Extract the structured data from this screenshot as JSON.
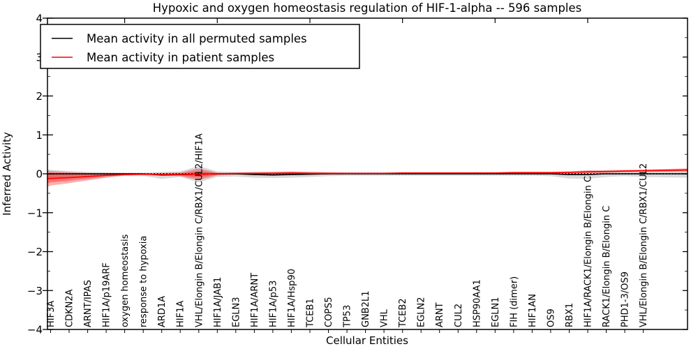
{
  "chart_data": {
    "type": "line",
    "title": "Hypoxic and oxygen homeostasis regulation of HIF-1-alpha -- 596 samples",
    "xlabel": "Cellular Entities",
    "ylabel": "Inferred Activity",
    "ylim": [
      -4,
      4
    ],
    "ytick_labels": [
      "4",
      "3",
      "2",
      "1",
      "0",
      "−1",
      "−2",
      "−3",
      "−4"
    ],
    "ytick_values": [
      4,
      3,
      2,
      1,
      0,
      -1,
      -2,
      -3,
      -4
    ],
    "grid": false,
    "legend_position": "upper-left",
    "categories": [
      "HIF3A",
      "CDKN2A",
      "ARNT/IPAS",
      "HIF1A/p19ARF",
      "oxygen homeostasis",
      "response to hypoxia",
      "ARD1A",
      "HIF1A",
      "VHL/Elongin B/Elongin C/RBX1/CUL2/HIF1A",
      "HIF1A/JAB1",
      "EGLN3",
      "HIF1A/ARNT",
      "HIF1A/p53",
      "HIF1A/Hsp90",
      "TCEB1",
      "COPS5",
      "TP53",
      "GNB2L1",
      "VHL",
      "TCEB2",
      "EGLN2",
      "ARNT",
      "CUL2",
      "HSP90AA1",
      "EGLN1",
      "FIH (dimer)",
      "HIF1AN",
      "OS9",
      "RBX1",
      "HIF1A/RACK1/Elongin B/Elongin C",
      "RACK1/Elongin B/Elongin C",
      "PHD1-3/OS9",
      "VHL/Elongin B/Elongin C/RBX1/CUL2"
    ],
    "series": [
      {
        "name": "Mean activity in all permuted samples",
        "color": "#000000",
        "band_color": "rgba(128,128,128,0.30)",
        "values": [
          0,
          0,
          0,
          0,
          0,
          0,
          -0.03,
          -0.02,
          -0.01,
          0,
          0,
          -0.02,
          -0.03,
          -0.02,
          -0.01,
          0,
          0,
          0,
          0,
          0,
          0,
          0,
          0,
          0,
          0,
          0,
          0,
          0,
          -0.02,
          -0.02,
          0,
          0,
          0
        ],
        "band_upper": [
          0.1,
          0.07,
          0.05,
          0.04,
          0.03,
          0.03,
          0.05,
          0.06,
          0.2,
          0.06,
          0.04,
          0.05,
          0.05,
          0.05,
          0.05,
          0.04,
          0.04,
          0.04,
          0.04,
          0.04,
          0.04,
          0.04,
          0.04,
          0.04,
          0.04,
          0.04,
          0.04,
          0.04,
          0.05,
          0.06,
          0.05,
          0.05,
          0.07
        ],
        "band_lower": [
          -0.12,
          -0.09,
          -0.06,
          -0.05,
          -0.04,
          -0.05,
          -0.13,
          -0.08,
          -0.22,
          -0.08,
          -0.07,
          -0.1,
          -0.11,
          -0.1,
          -0.08,
          -0.06,
          -0.05,
          -0.05,
          -0.05,
          -0.05,
          -0.05,
          -0.05,
          -0.05,
          -0.05,
          -0.05,
          -0.05,
          -0.05,
          -0.06,
          -0.12,
          -0.13,
          -0.08,
          -0.06,
          -0.08
        ],
        "edge_left": {
          "value": 0,
          "upper": 0.12,
          "lower": -0.14
        },
        "edge_right": {
          "value": 0,
          "upper": 0.09,
          "lower": -0.1
        }
      },
      {
        "name": "Mean activity in patient samples",
        "color": "#ff0000",
        "band_color": "rgba(255,0,0,0.32)",
        "values": [
          -0.12,
          -0.1,
          -0.07,
          -0.04,
          -0.02,
          -0.01,
          -0.02,
          -0.02,
          -0.01,
          0,
          0.01,
          0.01,
          0.01,
          0.02,
          0.01,
          0.01,
          0.01,
          0.01,
          0.01,
          0.02,
          0.02,
          0.02,
          0.02,
          0.02,
          0.02,
          0.03,
          0.03,
          0.03,
          0.04,
          0.05,
          0.06,
          0.07,
          0.08
        ],
        "band_upper": [
          0.07,
          0.04,
          0.02,
          0.01,
          0.01,
          0.01,
          0.02,
          0.03,
          0.14,
          0.03,
          0.03,
          0.04,
          0.05,
          0.06,
          0.05,
          0.04,
          0.03,
          0.03,
          0.03,
          0.04,
          0.04,
          0.04,
          0.04,
          0.04,
          0.04,
          0.05,
          0.05,
          0.05,
          0.06,
          0.09,
          0.09,
          0.1,
          0.11
        ],
        "band_lower": [
          -0.3,
          -0.24,
          -0.17,
          -0.1,
          -0.05,
          -0.03,
          -0.05,
          -0.06,
          -0.16,
          -0.04,
          -0.02,
          -0.02,
          -0.02,
          -0.02,
          -0.02,
          -0.02,
          -0.01,
          -0.01,
          -0.01,
          -0.01,
          0,
          0,
          0,
          0,
          0,
          0,
          0.01,
          0.01,
          0.01,
          0.02,
          0.03,
          0.04,
          0.05
        ],
        "edge_left": {
          "value": -0.13,
          "upper": 0.09,
          "lower": -0.34
        },
        "edge_right": {
          "value": 0.1,
          "upper": 0.14,
          "lower": 0.06
        }
      }
    ],
    "zero_reference_line": {
      "value": 0,
      "style": "dotted",
      "color": "#000000"
    }
  }
}
